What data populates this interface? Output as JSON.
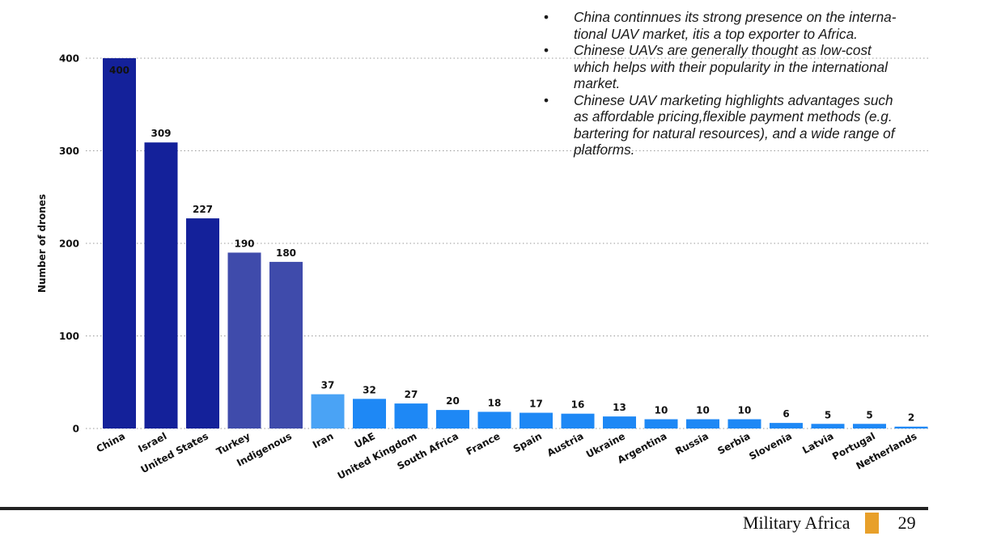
{
  "bullets": [
    "China continnues its strong presence on the interna-tional UAV market, itis a top exporter to Africa.",
    "Chinese UAVs are generally thought as low-cost which helps with their popularity in the international market.",
    "Chinese UAV marketing highlights advantages such as affordable pricing,flexible payment methods (e.g. bartering for natural resources), and a wide range of platforms."
  ],
  "bullet_lines": [
    [
      "China continnues its strong presence on the interna-",
      "tional UAV market, itis a top exporter to Africa."
    ],
    [
      "Chinese UAVs are generally thought as low-cost",
      "which helps with their popularity in the international",
      "market."
    ],
    [
      "Chinese UAV marketing highlights advantages such",
      "as affordable pricing,flexible payment methods (e.g.",
      "bartering for natural resources), and a wide range of",
      "platforms."
    ]
  ],
  "footer": {
    "brand": "Military Africa",
    "page_number": "29",
    "accent_color": "#e8a02a"
  },
  "chart_data": {
    "type": "bar",
    "title": "",
    "xlabel": "",
    "ylabel": "Number of drones",
    "ylim": [
      0,
      400
    ],
    "yticks": [
      0,
      100,
      200,
      300,
      400
    ],
    "grid": true,
    "legend": "none",
    "categories": [
      "China",
      "Israel",
      "United States",
      "Turkey",
      "Indigenous",
      "Iran",
      "UAE",
      "United Kingdom",
      "South Africa",
      "France",
      "Spain",
      "Austria",
      "Ukraine",
      "Argentina",
      "Russia",
      "Serbia",
      "Slovenia",
      "Latvia",
      "Portugal",
      "Netherlands"
    ],
    "values": [
      400,
      309,
      227,
      190,
      180,
      37,
      32,
      27,
      20,
      18,
      17,
      16,
      13,
      10,
      10,
      10,
      6,
      5,
      5,
      2
    ],
    "colors": [
      "#14219a",
      "#14219a",
      "#14219a",
      "#3f4bab",
      "#3f4bab",
      "#4aa3f5",
      "#1e88f5",
      "#1e88f5",
      "#1e88f5",
      "#1e88f5",
      "#1e88f5",
      "#1e88f5",
      "#1e88f5",
      "#1e88f5",
      "#1e88f5",
      "#1e88f5",
      "#1e88f5",
      "#1e88f5",
      "#1e88f5",
      "#1e88f5"
    ]
  }
}
